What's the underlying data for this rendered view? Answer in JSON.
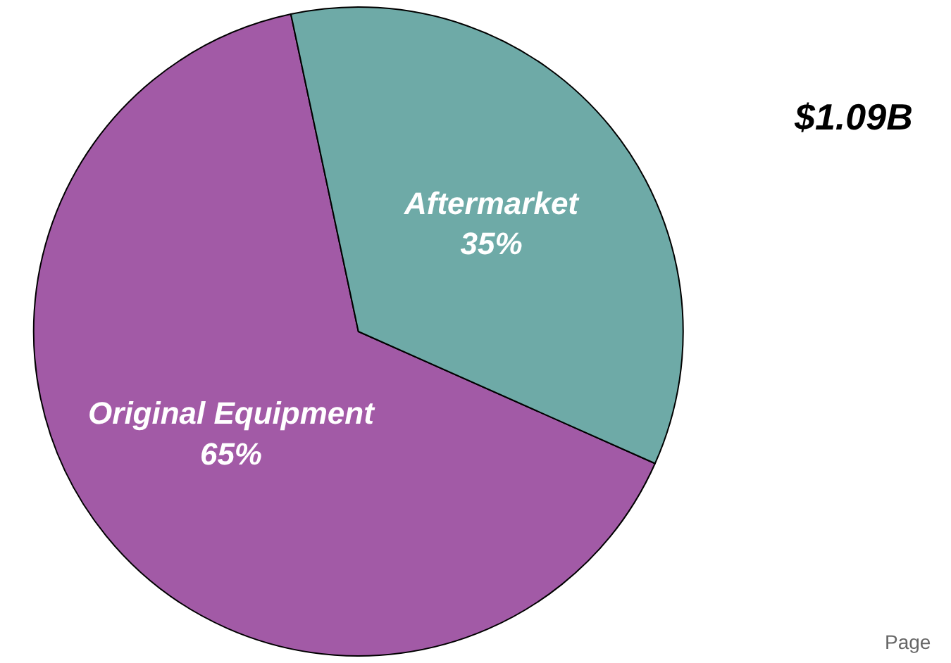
{
  "chart_data": {
    "type": "pie",
    "categories": [
      "Original Equipment",
      "Aftermarket"
    ],
    "values": [
      65,
      35
    ],
    "value_labels": [
      "65%",
      "35%"
    ],
    "colors": [
      "#a25aa6",
      "#6eaaa7"
    ],
    "annotations": [
      "$1.09B",
      "Page"
    ],
    "legend": false
  }
}
